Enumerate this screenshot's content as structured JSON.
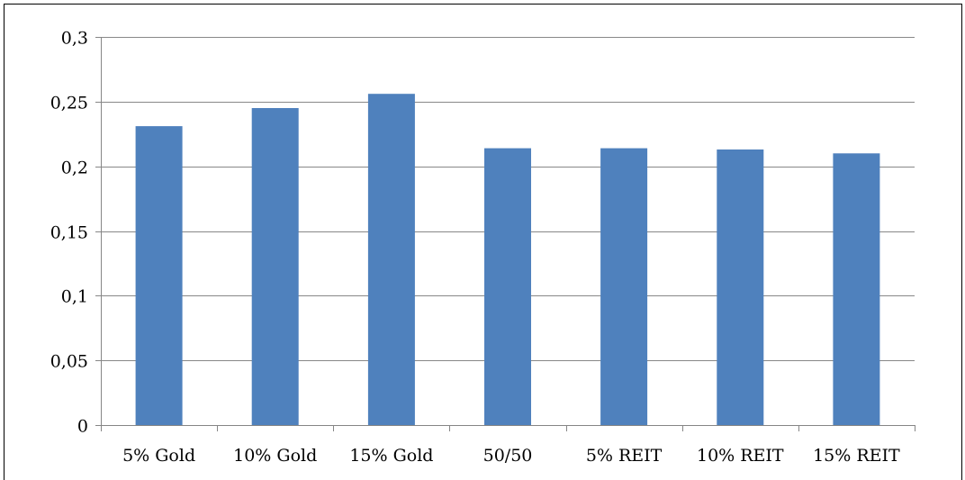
{
  "chart_data": {
    "type": "bar",
    "title": "",
    "xlabel": "",
    "ylabel": "",
    "categories": [
      "5% Gold",
      "10% Gold",
      "15% Gold",
      "50/50",
      "5% REIT",
      "10% REIT",
      "15% REIT"
    ],
    "values": [
      0.231,
      0.245,
      0.256,
      0.214,
      0.214,
      0.213,
      0.21
    ],
    "ylim": [
      0,
      0.3
    ],
    "yticks": [
      0,
      0.05,
      0.1,
      0.15,
      0.2,
      0.25,
      0.3
    ],
    "ytick_labels": [
      "0",
      "0,05",
      "0,1",
      "0,15",
      "0,2",
      "0,25",
      "0,3"
    ],
    "grid": true,
    "legend": "none",
    "bar_color": "#4f81bd",
    "gridline_color": "#888888"
  }
}
